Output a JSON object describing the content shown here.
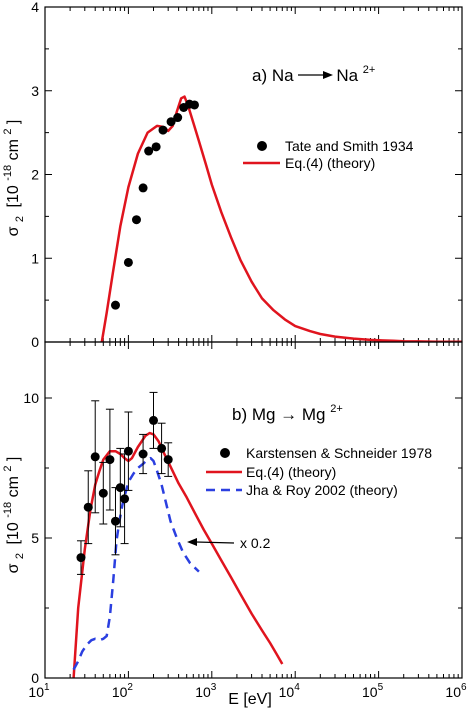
{
  "chart_data": [
    {
      "type": "line",
      "panel": "a",
      "annotation": {
        "prefix": "a) Na",
        "target": "Na",
        "target_sup": "2+"
      },
      "xscale": "log",
      "xlim": [
        10,
        1000000
      ],
      "ylim": [
        0,
        4
      ],
      "yticks": [
        "0",
        "1",
        "2",
        "3",
        "4"
      ],
      "ylabel": {
        "main": "σ",
        "sub": "2",
        "bracket": "[10",
        "exp": "-18",
        "unit": " cm",
        "unit_sup": "2",
        "close": "]"
      },
      "legend": [
        "Tate and Smith 1934",
        "Eq.(4) (theory)"
      ],
      "series": [
        {
          "name": "Tate and Smith 1934",
          "kind": "points",
          "color": "#000000",
          "x": [
            70,
            100,
            125,
            150,
            175,
            215,
            260,
            325,
            390,
            460,
            540,
            620
          ],
          "y": [
            0.44,
            0.95,
            1.46,
            1.84,
            2.28,
            2.33,
            2.53,
            2.63,
            2.68,
            2.8,
            2.84,
            2.83
          ]
        },
        {
          "name": "Eq.(4) (theory)",
          "kind": "line",
          "color": "#e0141e",
          "x": [
            48,
            55,
            65,
            80,
            100,
            130,
            170,
            220,
            260,
            300,
            340,
            380,
            430,
            470,
            520,
            600,
            700,
            850,
            1000,
            1300,
            1700,
            2200,
            3000,
            4000,
            5500,
            7500,
            10000,
            15000,
            20000,
            30000,
            50000,
            80000,
            100000,
            150000,
            200000,
            300000,
            500000,
            800000,
            1000000
          ],
          "y": [
            0.0,
            0.35,
            0.82,
            1.38,
            1.85,
            2.25,
            2.5,
            2.58,
            2.57,
            2.52,
            2.58,
            2.75,
            2.91,
            2.93,
            2.82,
            2.62,
            2.4,
            2.12,
            1.88,
            1.55,
            1.25,
            0.98,
            0.72,
            0.52,
            0.38,
            0.27,
            0.19,
            0.13,
            0.095,
            0.065,
            0.04,
            0.025,
            0.02,
            0.014,
            0.01,
            0.007,
            0.004,
            0.003,
            0.002
          ]
        }
      ]
    },
    {
      "type": "line",
      "panel": "b",
      "annotation": {
        "prefix": "b) Mg → Mg",
        "target_sup": "2+"
      },
      "xscale": "log",
      "xlim": [
        10,
        1000000
      ],
      "xticks": [
        {
          "b": "10",
          "e": "1"
        },
        {
          "b": "10",
          "e": "2"
        },
        {
          "b": "10",
          "e": "3"
        },
        {
          "b": "10",
          "e": "4"
        },
        {
          "b": "10",
          "e": "5"
        },
        {
          "b": "10",
          "e": "6"
        }
      ],
      "xlabel": "E [eV]",
      "ylim": [
        0,
        12
      ],
      "yticks": [
        "0",
        "5",
        "10"
      ],
      "ylabel": {
        "main": "σ",
        "sub": "2",
        "bracket": "[10",
        "exp": "-18",
        "unit": " cm",
        "unit_sup": "2",
        "close": "]"
      },
      "legend": [
        "Karstensen & Schneider 1978",
        "Eq.(4) (theory)",
        "Jha & Roy 2002 (theory)"
      ],
      "scale_note": "x 0.2",
      "series": [
        {
          "name": "Karstensen & Schneider 1978",
          "kind": "points",
          "color": "#000000",
          "x": [
            27,
            33,
            40,
            50,
            60,
            70,
            80,
            90,
            100,
            150,
            200,
            250,
            300
          ],
          "y": [
            4.3,
            6.1,
            7.9,
            6.6,
            7.8,
            5.6,
            6.8,
            6.4,
            8.1,
            8.0,
            9.2,
            8.2,
            7.8
          ],
          "err": [
            0.6,
            1.3,
            2.0,
            1.1,
            1.8,
            1.2,
            1.4,
            1.6,
            1.4,
            0.7,
            1.0,
            0.9,
            0.6
          ]
        },
        {
          "name": "Eq.(4) (theory)",
          "kind": "line",
          "color": "#e0141e",
          "x": [
            22,
            25,
            30,
            35,
            40,
            45,
            50,
            60,
            70,
            80,
            90,
            100,
            110,
            130,
            160,
            180,
            200,
            230,
            270,
            320,
            400,
            500,
            650,
            800,
            1000,
            1300,
            1700,
            2200,
            3000,
            4000,
            5000,
            6000,
            7000
          ],
          "y": [
            0.0,
            2.5,
            4.6,
            6.0,
            6.9,
            7.4,
            7.8,
            8.1,
            8.1,
            8.0,
            7.85,
            7.75,
            7.85,
            8.25,
            8.65,
            8.75,
            8.7,
            8.45,
            8.0,
            7.55,
            6.95,
            6.45,
            5.8,
            5.3,
            4.8,
            4.2,
            3.6,
            3.0,
            2.3,
            1.7,
            1.25,
            0.85,
            0.5
          ]
        },
        {
          "name": "Jha & Roy 2002 (theory)",
          "kind": "dashed",
          "color": "#2b3fe0",
          "x": [
            22,
            25,
            28,
            32,
            36,
            40,
            45,
            50,
            55,
            60,
            66,
            72,
            78,
            85,
            92,
            100,
            115,
            130,
            150,
            170,
            185,
            200,
            220,
            250,
            280,
            320,
            380,
            450,
            550,
            700
          ],
          "y": [
            0.3,
            0.6,
            0.95,
            1.2,
            1.35,
            1.4,
            1.35,
            1.4,
            1.5,
            2.2,
            3.5,
            4.9,
            5.6,
            6.2,
            6.6,
            7.0,
            7.3,
            7.5,
            7.65,
            7.8,
            7.85,
            7.75,
            7.4,
            6.9,
            6.3,
            5.6,
            5.0,
            4.5,
            4.1,
            3.8
          ]
        }
      ]
    }
  ]
}
